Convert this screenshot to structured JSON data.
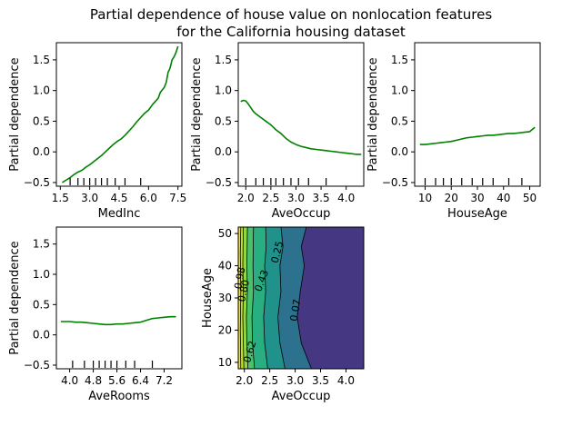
{
  "title": "Partial dependence of house value on nonlocation features\nfor the California housing dataset",
  "colors": {
    "line": "#008000",
    "contour_line": "#000000"
  },
  "chart_data": [
    {
      "key": "medinc",
      "type": "line",
      "title": "",
      "xlabel": "MedInc",
      "ylabel": "Partial dependence",
      "xlim": [
        1.3,
        7.7
      ],
      "ylim": [
        -0.56,
        1.78
      ],
      "xticks": [
        1.5,
        3.0,
        4.5,
        6.0,
        7.5
      ],
      "xtick_labels": [
        "1.5",
        "3.0",
        "4.5",
        "6.0",
        "7.5"
      ],
      "yticks": [
        -0.5,
        0.0,
        0.5,
        1.0,
        1.5
      ],
      "ytick_labels": [
        "−0.5",
        "0.0",
        "0.5",
        "1.0",
        "1.5"
      ],
      "x": [
        1.6,
        1.8,
        2.0,
        2.2,
        2.4,
        2.6,
        2.8,
        3.0,
        3.2,
        3.4,
        3.6,
        3.8,
        4.0,
        4.2,
        4.4,
        4.6,
        4.8,
        5.0,
        5.2,
        5.4,
        5.6,
        5.8,
        6.0,
        6.2,
        6.4,
        6.5,
        6.6,
        6.8,
        6.9,
        7.0,
        7.05,
        7.1,
        7.2,
        7.3,
        7.4,
        7.5
      ],
      "y": [
        -0.5,
        -0.46,
        -0.42,
        -0.37,
        -0.33,
        -0.3,
        -0.25,
        -0.21,
        -0.16,
        -0.11,
        -0.06,
        0.0,
        0.06,
        0.12,
        0.17,
        0.21,
        0.27,
        0.34,
        0.41,
        0.49,
        0.56,
        0.63,
        0.68,
        0.77,
        0.84,
        0.88,
        0.97,
        1.05,
        1.13,
        1.3,
        1.33,
        1.37,
        1.5,
        1.55,
        1.62,
        1.72
      ],
      "rug": [
        2.0,
        2.4,
        2.7,
        3.0,
        3.3,
        3.6,
        3.9,
        4.3,
        4.8,
        5.6
      ]
    },
    {
      "key": "aveoccup",
      "type": "line",
      "title": "",
      "xlabel": "AveOccup",
      "ylabel": "Partial dependence",
      "xlim": [
        1.85,
        4.35
      ],
      "ylim": [
        -0.56,
        1.78
      ],
      "xticks": [
        2.0,
        2.5,
        3.0,
        3.5,
        4.0
      ],
      "xtick_labels": [
        "2.0",
        "2.5",
        "3.0",
        "3.5",
        "4.0"
      ],
      "yticks": [
        -0.5,
        0.0,
        0.5,
        1.0,
        1.5
      ],
      "ytick_labels": [
        "−0.5",
        "0.0",
        "0.5",
        "1.0",
        "1.5"
      ],
      "x": [
        1.9,
        1.95,
        2.0,
        2.05,
        2.1,
        2.15,
        2.2,
        2.3,
        2.4,
        2.5,
        2.6,
        2.7,
        2.8,
        2.9,
        3.0,
        3.1,
        3.2,
        3.3,
        3.4,
        3.5,
        3.6,
        3.7,
        3.8,
        3.9,
        4.0,
        4.1,
        4.2,
        4.3
      ],
      "y": [
        0.82,
        0.84,
        0.83,
        0.78,
        0.72,
        0.66,
        0.62,
        0.56,
        0.5,
        0.44,
        0.36,
        0.3,
        0.22,
        0.16,
        0.12,
        0.09,
        0.07,
        0.05,
        0.04,
        0.03,
        0.02,
        0.01,
        0.0,
        -0.01,
        -0.02,
        -0.03,
        -0.04,
        -0.04
      ],
      "rug": [
        2.0,
        2.2,
        2.35,
        2.5,
        2.6,
        2.75,
        2.9,
        3.05,
        3.25,
        3.6
      ]
    },
    {
      "key": "houseage",
      "type": "line",
      "title": "",
      "xlabel": "HouseAge",
      "ylabel": "Partial dependence",
      "xlim": [
        6,
        54
      ],
      "ylim": [
        -0.56,
        1.78
      ],
      "xticks": [
        10,
        20,
        30,
        40,
        50
      ],
      "xtick_labels": [
        "10",
        "20",
        "30",
        "40",
        "50"
      ],
      "yticks": [
        -0.5,
        0.0,
        0.5,
        1.0,
        1.5
      ],
      "ytick_labels": [
        "−0.5",
        "0.0",
        "0.5",
        "1.0",
        "1.5"
      ],
      "x": [
        8,
        10,
        12,
        14,
        16,
        18,
        20,
        22,
        24,
        26,
        28,
        30,
        32,
        34,
        36,
        38,
        40,
        42,
        44,
        46,
        48,
        50,
        52
      ],
      "y": [
        0.12,
        0.12,
        0.13,
        0.14,
        0.15,
        0.16,
        0.17,
        0.19,
        0.21,
        0.23,
        0.24,
        0.25,
        0.26,
        0.27,
        0.27,
        0.28,
        0.29,
        0.3,
        0.3,
        0.31,
        0.32,
        0.33,
        0.4
      ],
      "rug": [
        10,
        14,
        17,
        20,
        24,
        28,
        32,
        36,
        42,
        47
      ]
    },
    {
      "key": "averooms",
      "type": "line",
      "title": "",
      "xlabel": "AveRooms",
      "ylabel": "Partial dependence",
      "xlim": [
        3.55,
        7.8
      ],
      "ylim": [
        -0.56,
        1.78
      ],
      "xticks": [
        4.0,
        4.8,
        5.6,
        6.4,
        7.2
      ],
      "xtick_labels": [
        "4.0",
        "4.8",
        "5.6",
        "6.4",
        "7.2"
      ],
      "yticks": [
        -0.5,
        0.0,
        0.5,
        1.0,
        1.5
      ],
      "ytick_labels": [
        "−0.5",
        "0.0",
        "0.5",
        "1.0",
        "1.5"
      ],
      "x": [
        3.7,
        4.0,
        4.2,
        4.4,
        4.6,
        4.8,
        5.0,
        5.2,
        5.4,
        5.6,
        5.8,
        6.0,
        6.2,
        6.4,
        6.6,
        6.8,
        7.0,
        7.2,
        7.4,
        7.6
      ],
      "y": [
        0.22,
        0.22,
        0.21,
        0.21,
        0.2,
        0.19,
        0.18,
        0.17,
        0.17,
        0.18,
        0.18,
        0.19,
        0.2,
        0.21,
        0.24,
        0.27,
        0.28,
        0.29,
        0.3,
        0.3
      ],
      "rug": [
        4.1,
        4.5,
        4.8,
        5.0,
        5.2,
        5.4,
        5.6,
        5.9,
        6.2,
        6.8
      ]
    },
    {
      "key": "contour",
      "type": "contour",
      "title": "",
      "xlabel": "AveOccup",
      "ylabel": "HouseAge",
      "xlim": [
        1.88,
        4.35
      ],
      "ylim": [
        8,
        52
      ],
      "xticks": [
        2.0,
        2.5,
        3.0,
        3.5,
        4.0
      ],
      "xtick_labels": [
        "2.0",
        "2.5",
        "3.0",
        "3.5",
        "4.0"
      ],
      "yticks": [
        10,
        20,
        30,
        40,
        50
      ],
      "ytick_labels": [
        "10",
        "20",
        "30",
        "40",
        "50"
      ],
      "band_colors": [
        "#fde725",
        "#bddf26",
        "#90d743",
        "#4ac16d",
        "#28ae80",
        "#21918c",
        "#2c728e",
        "#453781"
      ],
      "boundaries": [
        {
          "level": "1.16",
          "pts": [
            [
              8,
              1.93
            ],
            [
              20,
              1.92
            ],
            [
              32,
              1.93
            ],
            [
              44,
              1.92
            ],
            [
              52,
              1.93
            ]
          ]
        },
        {
          "level": "0.98",
          "pts": [
            [
              8,
              1.99
            ],
            [
              16,
              1.98
            ],
            [
              24,
              1.97
            ],
            [
              32,
              1.98
            ],
            [
              40,
              1.97
            ],
            [
              52,
              1.98
            ]
          ]
        },
        {
          "level": "0.80",
          "pts": [
            [
              8,
              2.07
            ],
            [
              16,
              2.05
            ],
            [
              24,
              2.04
            ],
            [
              32,
              2.06
            ],
            [
              40,
              2.05
            ],
            [
              52,
              2.06
            ]
          ]
        },
        {
          "level": "0.62",
          "pts": [
            [
              8,
              2.2
            ],
            [
              16,
              2.16
            ],
            [
              24,
              2.15
            ],
            [
              32,
              2.18
            ],
            [
              40,
              2.17
            ],
            [
              52,
              2.18
            ]
          ]
        },
        {
          "level": "0.43",
          "pts": [
            [
              8,
              2.46
            ],
            [
              16,
              2.4
            ],
            [
              24,
              2.38
            ],
            [
              32,
              2.42
            ],
            [
              40,
              2.4
            ],
            [
              46,
              2.43
            ],
            [
              52,
              2.42
            ]
          ]
        },
        {
          "level": "0.25",
          "pts": [
            [
              8,
              2.8
            ],
            [
              16,
              2.7
            ],
            [
              24,
              2.66
            ],
            [
              32,
              2.72
            ],
            [
              40,
              2.7
            ],
            [
              46,
              2.76
            ],
            [
              52,
              2.72
            ]
          ]
        },
        {
          "level": "0.07",
          "pts": [
            [
              8,
              3.32
            ],
            [
              16,
              3.12
            ],
            [
              24,
              3.04
            ],
            [
              32,
              3.1
            ],
            [
              40,
              3.18
            ],
            [
              46,
              3.12
            ],
            [
              52,
              3.22
            ]
          ]
        }
      ],
      "labels": [
        {
          "text": "0.98",
          "x": 1.975,
          "y": 36,
          "rot": -80
        },
        {
          "text": "0.80",
          "x": 2.05,
          "y": 32,
          "rot": -78
        },
        {
          "text": "0.62",
          "x": 2.17,
          "y": 13,
          "rot": -74
        },
        {
          "text": "0.43",
          "x": 2.4,
          "y": 35,
          "rot": -70
        },
        {
          "text": "0.25",
          "x": 2.71,
          "y": 44,
          "rot": -76
        },
        {
          "text": "0.07",
          "x": 3.07,
          "y": 26,
          "rot": -80
        }
      ]
    }
  ]
}
